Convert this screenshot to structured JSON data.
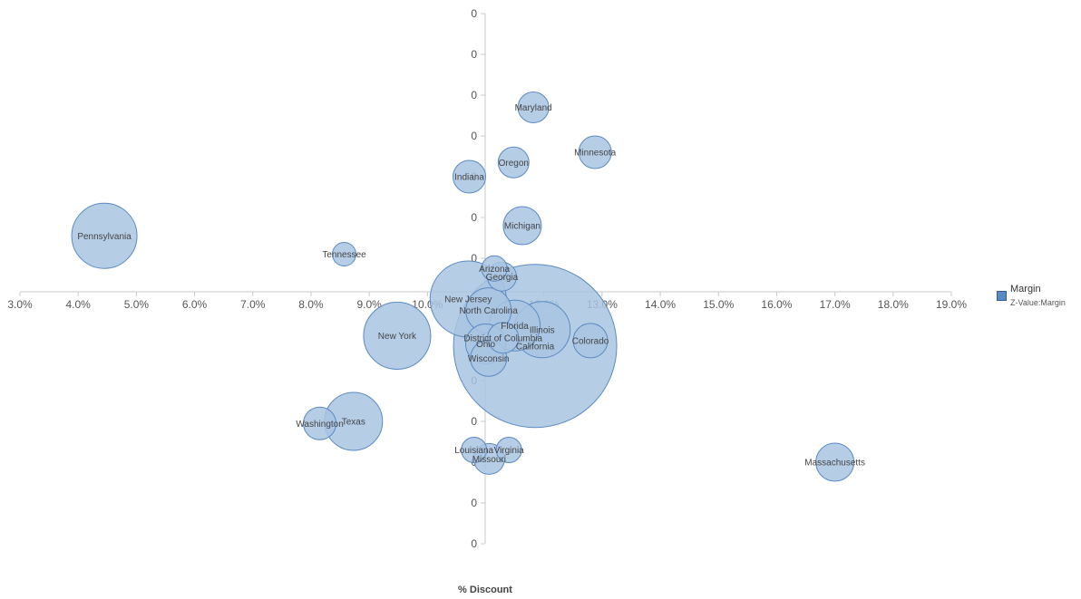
{
  "chart_data": {
    "type": "bubble",
    "xlabel": "% Discount",
    "x_ticks": [
      "3.0%",
      "4.0%",
      "5.0%",
      "6.0%",
      "7.0%",
      "8.0%",
      "9.0%",
      "10.0%",
      "11.0%",
      "12.0%",
      "13.0%",
      "14.0%",
      "15.0%",
      "16.0%",
      "17.0%",
      "18.0%",
      "19.0%"
    ],
    "x_tick_values": [
      3,
      4,
      5,
      6,
      7,
      8,
      9,
      10,
      11,
      12,
      13,
      14,
      15,
      16,
      17,
      18,
      19
    ],
    "xlim": [
      3,
      19
    ],
    "y_ticks": [
      "0",
      "0",
      "0",
      "0",
      "0",
      "0",
      "0",
      "0",
      "0",
      "0",
      "0",
      "0",
      "0",
      "0"
    ],
    "y_tick_values": [
      6.5,
      5.5,
      4.5,
      3.5,
      2.5,
      1.5,
      0.5,
      -0.5,
      -1.5,
      -2.5,
      -3.5,
      -4.5,
      -5.5,
      -6.5
    ],
    "ylim": [
      -6.5,
      6.5
    ],
    "bubble_color": "#a9c4e2",
    "bubble_stroke": "#5b8ac2",
    "points": [
      {
        "label": "Pennsylvania",
        "x": 4.45,
        "y": 1.05,
        "size": 36
      },
      {
        "label": "Tennessee",
        "x": 8.57,
        "y": 0.6,
        "size": 13
      },
      {
        "label": "Indiana",
        "x": 10.72,
        "y": 2.5,
        "size": 18
      },
      {
        "label": "Oregon",
        "x": 11.48,
        "y": 2.85,
        "size": 17
      },
      {
        "label": "Maryland",
        "x": 11.82,
        "y": 4.2,
        "size": 17
      },
      {
        "label": "Minnesota",
        "x": 12.88,
        "y": 3.1,
        "size": 18
      },
      {
        "label": "Michigan",
        "x": 11.63,
        "y": 1.3,
        "size": 21
      },
      {
        "label": "Arizona",
        "x": 11.15,
        "y": 0.25,
        "size": 14
      },
      {
        "label": "Georgia",
        "x": 11.28,
        "y": 0.05,
        "size": 16
      },
      {
        "label": "New Jersey",
        "x": 10.7,
        "y": -0.5,
        "size": 42
      },
      {
        "label": "North Carolina",
        "x": 11.05,
        "y": -0.78,
        "size": 25
      },
      {
        "label": "Florida",
        "x": 11.5,
        "y": -1.15,
        "size": 28
      },
      {
        "label": "Illinois",
        "x": 11.97,
        "y": -1.25,
        "size": 31
      },
      {
        "label": "California",
        "x": 11.85,
        "y": -1.65,
        "size": 90
      },
      {
        "label": "Colorado",
        "x": 12.8,
        "y": -1.52,
        "size": 19
      },
      {
        "label": "District of Columbia",
        "x": 11.3,
        "y": -1.45,
        "size": 17
      },
      {
        "label": "Ohio",
        "x": 11.0,
        "y": -1.6,
        "size": 22
      },
      {
        "label": "Wisconsin",
        "x": 11.05,
        "y": -1.95,
        "size": 20
      },
      {
        "label": "New York",
        "x": 9.48,
        "y": -1.4,
        "size": 37
      },
      {
        "label": "Texas",
        "x": 8.73,
        "y": -3.5,
        "size": 32
      },
      {
        "label": "Washington",
        "x": 8.15,
        "y": -3.55,
        "size": 18
      },
      {
        "label": "Louisiana",
        "x": 10.8,
        "y": -4.2,
        "size": 14
      },
      {
        "label": "Virginia",
        "x": 11.4,
        "y": -4.2,
        "size": 14
      },
      {
        "label": "Missouri",
        "x": 11.06,
        "y": -4.42,
        "size": 17
      },
      {
        "label": "Massachusetts",
        "x": 17.0,
        "y": -4.5,
        "size": 21
      }
    ]
  },
  "legend": {
    "title": "Margin",
    "subtitle": "Z-Value:Margin",
    "swatch_color": "#5b8ac2"
  }
}
